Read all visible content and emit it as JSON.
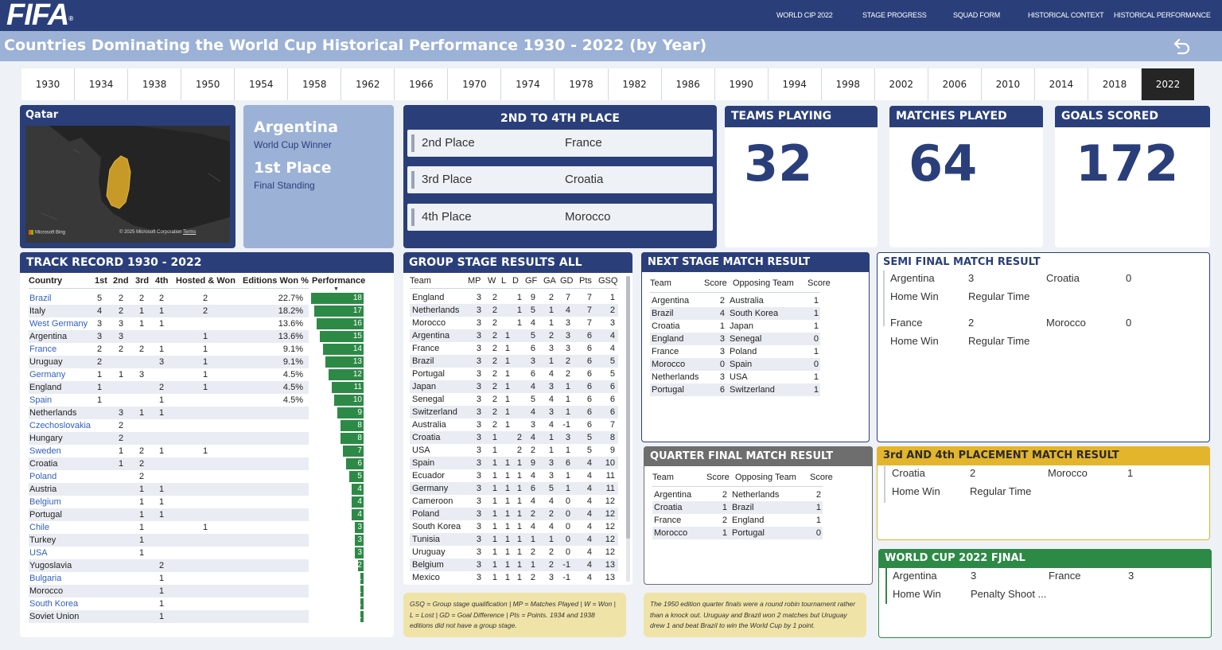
{
  "nav": {
    "logo": "FIFA",
    "logo_mark": "®",
    "links": [
      "WORLD CIP 2022",
      "STAGE PROGRESS",
      "SQUAD FORM",
      "HISTORICAL CONTEXT",
      "HISTORICAL PERFORMANCE"
    ]
  },
  "page_title": "Countries Dominating the World Cup Historical Performance 1930 - 2022 (by Year)",
  "years": [
    "1930",
    "1934",
    "1938",
    "1950",
    "1954",
    "1958",
    "1962",
    "1966",
    "1970",
    "1974",
    "1978",
    "1982",
    "1986",
    "1990",
    "1994",
    "1998",
    "2002",
    "2006",
    "2010",
    "2014",
    "2018",
    "2022"
  ],
  "selected_year": "2022",
  "host": {
    "title": "Qatar",
    "attribution_left": "Microsoft Bing",
    "attribution_right": "© 2025 Microsoft Corporation",
    "terms": "Terms"
  },
  "winner": {
    "name": "Argentina",
    "subtitle": "World Cup Winner",
    "place": "1st Place",
    "place_sub": "Final Standing"
  },
  "places": {
    "title": "2ND TO 4TH PLACE",
    "rows": [
      {
        "label": "2nd Place",
        "team": "France"
      },
      {
        "label": "3rd Place",
        "team": "Croatia"
      },
      {
        "label": "4th Place",
        "team": "Morocco"
      }
    ]
  },
  "kpis": [
    {
      "title": "TEAMS PLAYING",
      "value": "32"
    },
    {
      "title": "MATCHES PLAYED",
      "value": "64"
    },
    {
      "title": "GOALS SCORED",
      "value": "172"
    }
  ],
  "track": {
    "title": "TRACK RECORD 1930 - 2022",
    "headers": [
      "Country",
      "1st",
      "2nd",
      "3rd",
      "4th",
      "Hosted & Won",
      "Editions Won %",
      "Performance"
    ],
    "rows": [
      {
        "country": "Brazil",
        "c1": "5",
        "c2": "2",
        "c3": "2",
        "c4": "2",
        "host": "2",
        "pct": "22.7%",
        "perf": 18,
        "link": true
      },
      {
        "country": "Italy",
        "c1": "4",
        "c2": "2",
        "c3": "1",
        "c4": "1",
        "host": "2",
        "pct": "18.2%",
        "perf": 17,
        "link": false
      },
      {
        "country": "West Germany",
        "c1": "3",
        "c2": "3",
        "c3": "1",
        "c4": "1",
        "host": "",
        "pct": "13.6%",
        "perf": 16,
        "link": true
      },
      {
        "country": "Argentina",
        "c1": "3",
        "c2": "3",
        "c3": "",
        "c4": "",
        "host": "1",
        "pct": "13.6%",
        "perf": 15,
        "link": false
      },
      {
        "country": "France",
        "c1": "2",
        "c2": "2",
        "c3": "2",
        "c4": "1",
        "host": "1",
        "pct": "9.1%",
        "perf": 14,
        "link": true
      },
      {
        "country": "Uruguay",
        "c1": "2",
        "c2": "",
        "c3": "",
        "c4": "3",
        "host": "1",
        "pct": "9.1%",
        "perf": 13,
        "link": false
      },
      {
        "country": "Germany",
        "c1": "1",
        "c2": "1",
        "c3": "3",
        "c4": "",
        "host": "1",
        "pct": "4.5%",
        "perf": 12,
        "link": true
      },
      {
        "country": "England",
        "c1": "1",
        "c2": "",
        "c3": "",
        "c4": "2",
        "host": "1",
        "pct": "4.5%",
        "perf": 11,
        "link": false
      },
      {
        "country": "Spain",
        "c1": "1",
        "c2": "",
        "c3": "",
        "c4": "1",
        "host": "",
        "pct": "4.5%",
        "perf": 10,
        "link": true
      },
      {
        "country": "Netherlands",
        "c1": "",
        "c2": "3",
        "c3": "1",
        "c4": "1",
        "host": "",
        "pct": "",
        "perf": 9,
        "link": false
      },
      {
        "country": "Czechoslovakia",
        "c1": "",
        "c2": "2",
        "c3": "",
        "c4": "",
        "host": "",
        "pct": "",
        "perf": 8,
        "link": true
      },
      {
        "country": "Hungary",
        "c1": "",
        "c2": "2",
        "c3": "",
        "c4": "",
        "host": "",
        "pct": "",
        "perf": 8,
        "link": false
      },
      {
        "country": "Sweden",
        "c1": "",
        "c2": "1",
        "c3": "2",
        "c4": "1",
        "host": "1",
        "pct": "",
        "perf": 7,
        "link": true
      },
      {
        "country": "Croatia",
        "c1": "",
        "c2": "1",
        "c3": "2",
        "c4": "",
        "host": "",
        "pct": "",
        "perf": 6,
        "link": false
      },
      {
        "country": "Poland",
        "c1": "",
        "c2": "",
        "c3": "2",
        "c4": "",
        "host": "",
        "pct": "",
        "perf": 5,
        "link": true
      },
      {
        "country": "Austria",
        "c1": "",
        "c2": "",
        "c3": "1",
        "c4": "1",
        "host": "",
        "pct": "",
        "perf": 4,
        "link": false
      },
      {
        "country": "Belgium",
        "c1": "",
        "c2": "",
        "c3": "1",
        "c4": "1",
        "host": "",
        "pct": "",
        "perf": 4,
        "link": true
      },
      {
        "country": "Portugal",
        "c1": "",
        "c2": "",
        "c3": "1",
        "c4": "1",
        "host": "",
        "pct": "",
        "perf": 4,
        "link": false
      },
      {
        "country": "Chile",
        "c1": "",
        "c2": "",
        "c3": "1",
        "c4": "",
        "host": "1",
        "pct": "",
        "perf": 3,
        "link": true
      },
      {
        "country": "Turkey",
        "c1": "",
        "c2": "",
        "c3": "1",
        "c4": "",
        "host": "",
        "pct": "",
        "perf": 3,
        "link": false
      },
      {
        "country": "USA",
        "c1": "",
        "c2": "",
        "c3": "1",
        "c4": "",
        "host": "",
        "pct": "",
        "perf": 3,
        "link": true
      },
      {
        "country": "Yugoslavia",
        "c1": "",
        "c2": "",
        "c3": "",
        "c4": "2",
        "host": "",
        "pct": "",
        "perf": 2,
        "link": false
      },
      {
        "country": "Bulgaria",
        "c1": "",
        "c2": "",
        "c3": "",
        "c4": "1",
        "host": "",
        "pct": "",
        "perf": 1,
        "link": true
      },
      {
        "country": "Morocco",
        "c1": "",
        "c2": "",
        "c3": "",
        "c4": "1",
        "host": "",
        "pct": "",
        "perf": 1,
        "link": false
      },
      {
        "country": "South Korea",
        "c1": "",
        "c2": "",
        "c3": "",
        "c4": "1",
        "host": "",
        "pct": "",
        "perf": 1,
        "link": true
      },
      {
        "country": "Soviet Union",
        "c1": "",
        "c2": "",
        "c3": "",
        "c4": "1",
        "host": "",
        "pct": "",
        "perf": 1,
        "link": false
      }
    ]
  },
  "group": {
    "title": "GROUP STAGE RESULTS ALL",
    "headers": [
      "Team",
      "MP",
      "W",
      "L",
      "D",
      "GF",
      "GA",
      "GD",
      "Pts",
      "GSQ"
    ],
    "rows": [
      [
        "England",
        "3",
        "2",
        "",
        "1",
        "9",
        "2",
        "7",
        "7",
        "1"
      ],
      [
        "Netherlands",
        "3",
        "2",
        "",
        "1",
        "5",
        "1",
        "4",
        "7",
        "2"
      ],
      [
        "Morocco",
        "3",
        "2",
        "",
        "1",
        "4",
        "1",
        "3",
        "7",
        "3"
      ],
      [
        "Argentina",
        "3",
        "2",
        "1",
        "",
        "5",
        "2",
        "3",
        "6",
        "4"
      ],
      [
        "France",
        "3",
        "2",
        "1",
        "",
        "6",
        "3",
        "3",
        "6",
        "4"
      ],
      [
        "Brazil",
        "3",
        "2",
        "1",
        "",
        "3",
        "1",
        "2",
        "6",
        "5"
      ],
      [
        "Portugal",
        "3",
        "2",
        "1",
        "",
        "6",
        "4",
        "2",
        "6",
        "5"
      ],
      [
        "Japan",
        "3",
        "2",
        "1",
        "",
        "4",
        "3",
        "1",
        "6",
        "6"
      ],
      [
        "Senegal",
        "3",
        "2",
        "1",
        "",
        "5",
        "4",
        "1",
        "6",
        "6"
      ],
      [
        "Switzerland",
        "3",
        "2",
        "1",
        "",
        "4",
        "3",
        "1",
        "6",
        "6"
      ],
      [
        "Australia",
        "3",
        "2",
        "1",
        "",
        "3",
        "4",
        "-1",
        "6",
        "7"
      ],
      [
        "Croatia",
        "3",
        "1",
        "",
        "2",
        "4",
        "1",
        "3",
        "5",
        "8"
      ],
      [
        "USA",
        "3",
        "1",
        "",
        "2",
        "2",
        "1",
        "1",
        "5",
        "9"
      ],
      [
        "Spain",
        "3",
        "1",
        "1",
        "1",
        "9",
        "3",
        "6",
        "4",
        "10"
      ],
      [
        "Ecuador",
        "3",
        "1",
        "1",
        "1",
        "4",
        "3",
        "1",
        "4",
        "11"
      ],
      [
        "Germany",
        "3",
        "1",
        "1",
        "1",
        "6",
        "5",
        "1",
        "4",
        "11"
      ],
      [
        "Cameroon",
        "3",
        "1",
        "1",
        "1",
        "4",
        "4",
        "0",
        "4",
        "12"
      ],
      [
        "Poland",
        "3",
        "1",
        "1",
        "1",
        "2",
        "2",
        "0",
        "4",
        "12"
      ],
      [
        "South Korea",
        "3",
        "1",
        "1",
        "1",
        "4",
        "4",
        "0",
        "4",
        "12"
      ],
      [
        "Tunisia",
        "3",
        "1",
        "1",
        "1",
        "1",
        "1",
        "0",
        "4",
        "12"
      ],
      [
        "Uruguay",
        "3",
        "1",
        "1",
        "1",
        "2",
        "2",
        "0",
        "4",
        "12"
      ],
      [
        "Belgium",
        "3",
        "1",
        "1",
        "1",
        "1",
        "2",
        "-1",
        "4",
        "13"
      ],
      [
        "Mexico",
        "3",
        "1",
        "1",
        "1",
        "2",
        "3",
        "-1",
        "4",
        "13"
      ]
    ],
    "note": "GSQ = Group stage qualification | MP = Matches Played | W = Won | L = Lost | GD = Goal Difference | Pts = Points. 1934 and 1938 editions did not have a group stage."
  },
  "next_stage": {
    "title": "NEXT STAGE MATCH RESULT",
    "headers": [
      "Team",
      "Score",
      "Opposing Team",
      "Score"
    ],
    "rows": [
      [
        "Argentina",
        "2",
        "Australia",
        "1"
      ],
      [
        "Brazil",
        "4",
        "South Korea",
        "1"
      ],
      [
        "Croatia",
        "1",
        "Japan",
        "1"
      ],
      [
        "England",
        "3",
        "Senegal",
        "0"
      ],
      [
        "France",
        "3",
        "Poland",
        "1"
      ],
      [
        "Morocco",
        "0",
        "Spain",
        "0"
      ],
      [
        "Netherlands",
        "3",
        "USA",
        "1"
      ],
      [
        "Portugal",
        "6",
        "Switzerland",
        "1"
      ]
    ]
  },
  "quarter": {
    "title": "QUARTER FINAL MATCH RESULT",
    "headers": [
      "Team",
      "Score",
      "Opposing Team",
      "Score"
    ],
    "rows": [
      [
        "Argentina",
        "2",
        "Netherlands",
        "2"
      ],
      [
        "Croatia",
        "1",
        "Brazil",
        "1"
      ],
      [
        "France",
        "2",
        "England",
        "1"
      ],
      [
        "Morocco",
        "1",
        "Portugal",
        "0"
      ]
    ],
    "note": "The 1950 edition quarter finals were a round robin tournament rather than a knock out. Uruguay and Brazil won 2 matches but Uruguay drew 1 and beat Brazil to win the World Cup by 1 point."
  },
  "semi": {
    "title": "SEMI FINAL MATCH RESULT",
    "matches": [
      {
        "team": "Argentina",
        "score": "3",
        "opp": "Croatia",
        "opp_score": "0",
        "result": "Home Win",
        "time": "Regular Time"
      },
      {
        "team": "France",
        "score": "2",
        "opp": "Morocco",
        "opp_score": "0",
        "result": "Home Win",
        "time": "Regular Time"
      }
    ]
  },
  "third": {
    "title": "3rd AND 4th PLACEMENT MATCH RESULT",
    "match": {
      "team": "Croatia",
      "score": "2",
      "opp": "Morocco",
      "opp_score": "1",
      "result": "Home Win",
      "time": "Regular Time"
    }
  },
  "final": {
    "title": "WORLD CUP 2022 FJNAL",
    "match": {
      "team": "Argentina",
      "score": "3",
      "opp": "France",
      "opp_score": "3",
      "result": "Home Win",
      "time": "Penalty Shoot ..."
    }
  },
  "colors": {
    "navy": "#2a3f7a",
    "light_blue": "#9bb1d6",
    "green": "#2d8a46",
    "gold": "#e3b52c",
    "grey_header": "#6e6e6e",
    "note": "#f0e3a8"
  }
}
